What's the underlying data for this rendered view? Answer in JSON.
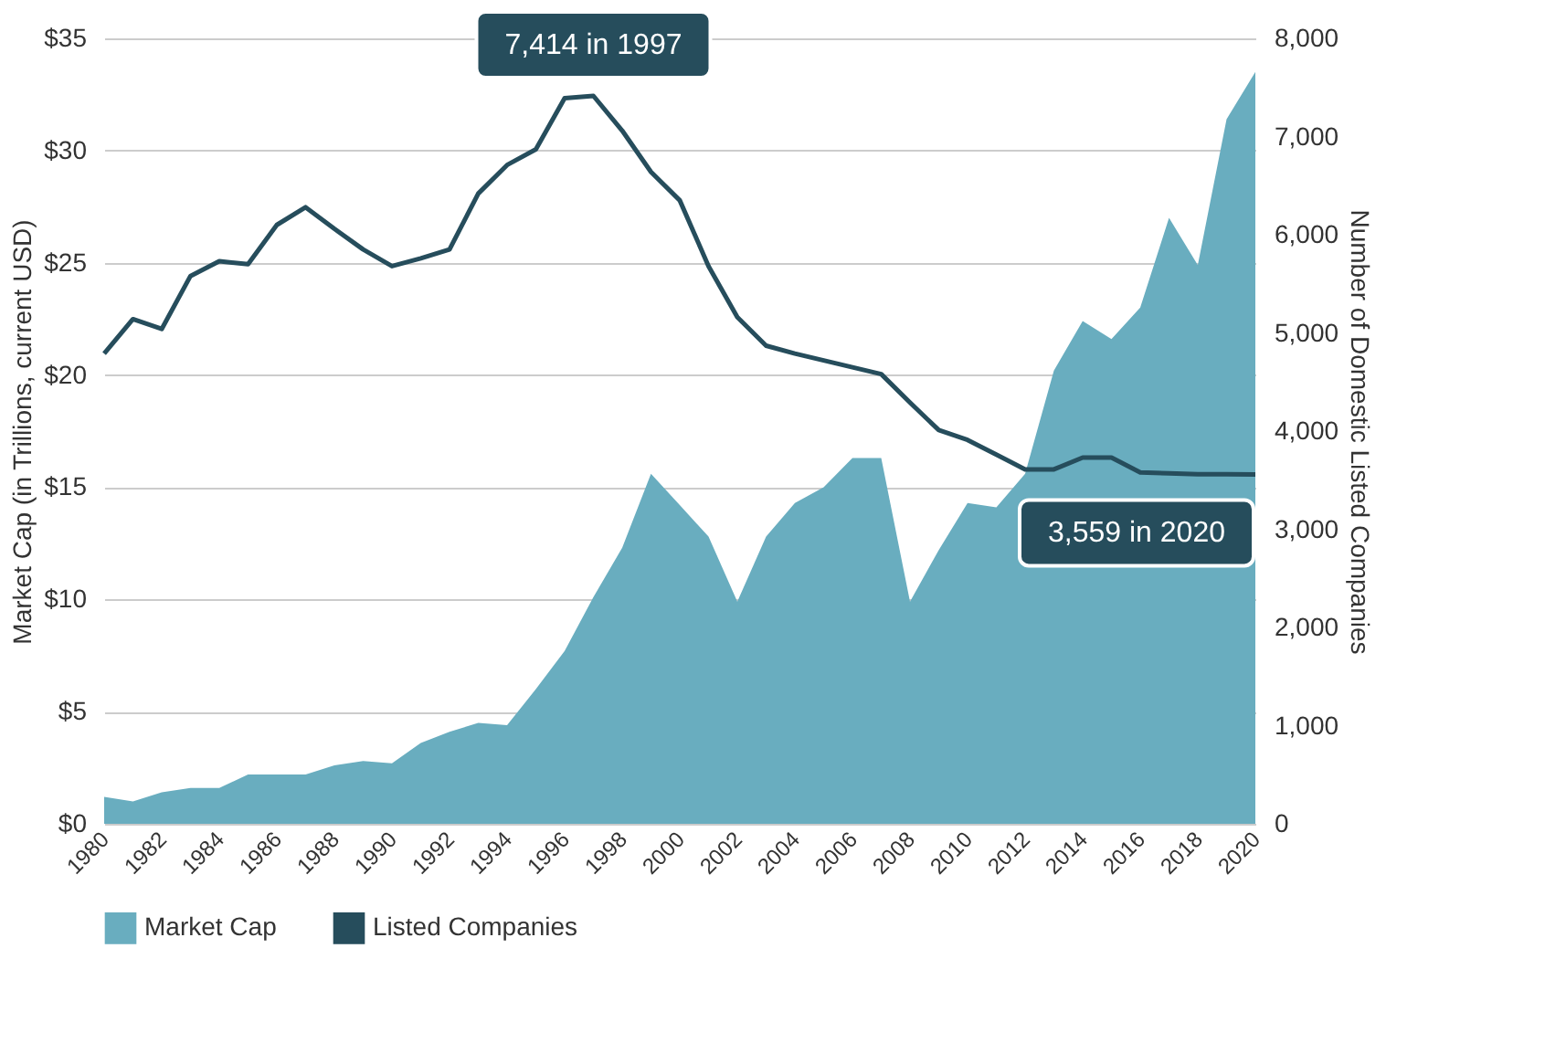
{
  "chart_data": {
    "type": "area",
    "xlabel": null,
    "ylabel": "Market Cap (in Trillions, current USD)",
    "y2label": "Number of Domestic Listed Companies",
    "x": [
      1980,
      1981,
      1982,
      1983,
      1984,
      1985,
      1986,
      1987,
      1988,
      1989,
      1990,
      1991,
      1992,
      1993,
      1994,
      1995,
      1996,
      1997,
      1998,
      1999,
      2000,
      2001,
      2002,
      2003,
      2004,
      2005,
      2006,
      2007,
      2008,
      2009,
      2010,
      2011,
      2012,
      2013,
      2014,
      2015,
      2016,
      2017,
      2018,
      2019,
      2020
    ],
    "series": [
      {
        "name": "Market Cap",
        "color": "#69adbf",
        "values": [
          1.2,
          1.0,
          1.4,
          1.6,
          1.6,
          2.2,
          2.2,
          2.2,
          2.6,
          2.8,
          2.7,
          3.6,
          4.1,
          4.5,
          4.4,
          6.0,
          7.7,
          10.1,
          12.3,
          15.6,
          14.2,
          12.8,
          9.9,
          12.8,
          14.3,
          15.0,
          16.3,
          16.3,
          9.9,
          12.2,
          14.3,
          14.1,
          15.6,
          20.2,
          22.4,
          21.6,
          23.0,
          27.0,
          24.9,
          31.4,
          33.5
        ]
      },
      {
        "name": "Listed Companies",
        "type": "line",
        "axis": "y2",
        "color": "#264d5c",
        "values": [
          4790,
          5140,
          5040,
          5580,
          5730,
          5700,
          6100,
          6280,
          6060,
          5850,
          5680,
          5760,
          5850,
          6420,
          6710,
          6870,
          7390,
          7414,
          7060,
          6640,
          6350,
          5680,
          5160,
          4870,
          4790,
          4720,
          4650,
          4580,
          4290,
          4010,
          3910,
          3760,
          3610,
          3610,
          3730,
          3730,
          3580,
          3570,
          3560,
          3560,
          3559
        ]
      }
    ],
    "xlim": [
      1980,
      2020
    ],
    "xticks": [
      1980,
      1982,
      1984,
      1986,
      1988,
      1990,
      1992,
      1994,
      1996,
      1998,
      2000,
      2002,
      2004,
      2006,
      2008,
      2010,
      2012,
      2014,
      2016,
      2018,
      2020
    ],
    "ylim": [
      0,
      35
    ],
    "yticks": [
      {
        "value": 0,
        "label": "$0"
      },
      {
        "value": 5,
        "label": "$5"
      },
      {
        "value": 10,
        "label": "$10"
      },
      {
        "value": 15,
        "label": "$15"
      },
      {
        "value": 20,
        "label": "$20"
      },
      {
        "value": 25,
        "label": "$25"
      },
      {
        "value": 30,
        "label": "$30"
      },
      {
        "value": 35,
        "label": "$35"
      }
    ],
    "y2lim": [
      0,
      8000
    ],
    "y2ticks": [
      0,
      {
        "value": 1000,
        "label": "1,000"
      },
      {
        "value": 2000,
        "label": "2,000"
      },
      {
        "value": 3000,
        "label": "3,000"
      },
      {
        "value": 4000,
        "label": "4,000"
      },
      {
        "value": 5000,
        "label": "5,000"
      },
      {
        "value": 6000,
        "label": "6,000"
      },
      {
        "value": 7000,
        "label": "7,000"
      },
      {
        "value": 8000,
        "label": "8,000"
      }
    ],
    "annotations": [
      "7,414 in 1997",
      "3,559 in 2020"
    ],
    "grid": "y",
    "legend": "bottom",
    "line_style": "solid",
    "marker": "none"
  }
}
